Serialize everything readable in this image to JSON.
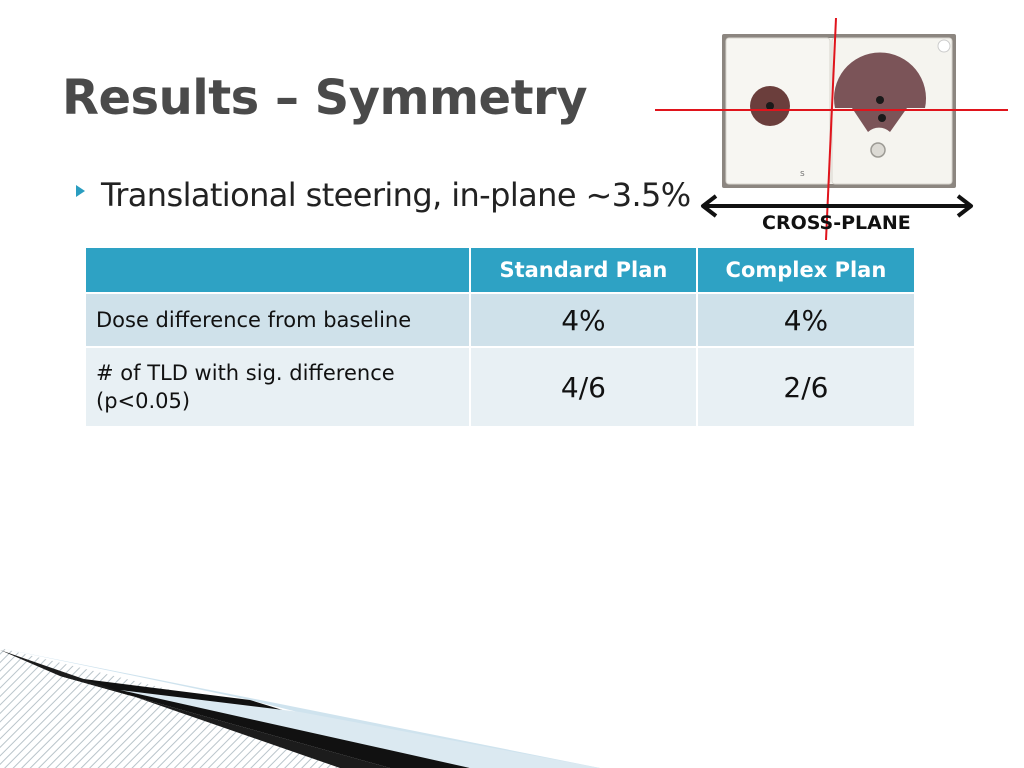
{
  "slide": {
    "title": "Results – Symmetry",
    "bullet": "Translational steering, in-plane ~3.5%"
  },
  "figure": {
    "image_label": "phantom photo with crosshair",
    "cross_plane_label": "CROSS-PLANE",
    "crosshair_color": "#e0141c"
  },
  "table": {
    "headers": [
      "",
      "Standard Plan",
      "Complex Plan"
    ],
    "rows": [
      {
        "label": "Dose difference from baseline",
        "standard": "4%",
        "complex": "4%"
      },
      {
        "label": "# of TLD with sig. difference (p<0.05)",
        "standard": "4/6",
        "complex": "2/6"
      }
    ]
  },
  "colors": {
    "title": "#4a4a4a",
    "accent": "#2ea2c4",
    "row_dark": "#cfe1ea",
    "row_light": "#e8f0f4"
  }
}
